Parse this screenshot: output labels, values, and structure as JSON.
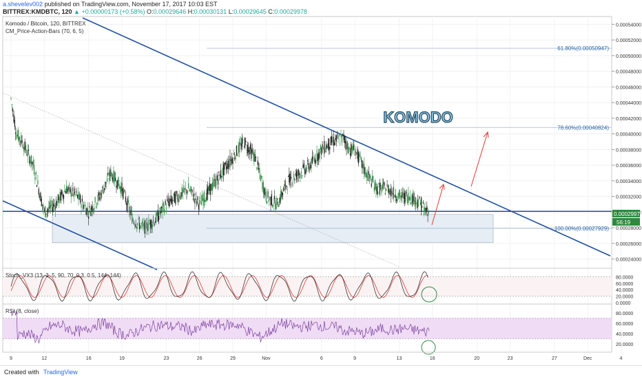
{
  "header": {
    "author": "a.shevelev002",
    "published": "published on TradingView.com, November 17, 2017 10:03 EST",
    "symbol": "BITTREX:KMDBTC, 120",
    "change": "▲ +0.00000173 (+0.58%)",
    "open_label": "O:",
    "open": "0.00029646",
    "high_label": "H:",
    "high": "0.00030131",
    "low_label": "L:",
    "low": "0.00029645",
    "close_label": "C:",
    "close": "0.00029978"
  },
  "legend": {
    "line1": "Komodo / Bitcoin, 120, BITTREX",
    "line2": "CM_Price-Action-Bars (70, 6, 5)"
  },
  "watermark": "KOMODO",
  "price_badge": "0.00029978",
  "countdown_badge": "56:19",
  "footer": {
    "created": "Created with",
    "brand": "TradingView"
  },
  "colors": {
    "trendline": "#1e4fa0",
    "fib": "#2a66a8",
    "bull": "#2b8a3e",
    "bear": "#1a1a1a",
    "arrow": "#e53935",
    "zone": "#dfe7f1",
    "stoch_k": "#1a1a1a",
    "stoch_d": "#e53935",
    "rsi": "#7b3fa0",
    "rsi_band": "#f0dcf5"
  },
  "chart_data": {
    "type": "candlestick",
    "symbol": "BITTREX:KMDBTC",
    "interval": "120",
    "y_axis": {
      "min": 0.00023,
      "max": 0.00055,
      "tick_labels": [
        "0.00054000",
        "0.00052000",
        "0.00050000",
        "0.00048000",
        "0.00046000",
        "0.00044000",
        "0.00042000",
        "0.00040000",
        "0.00038000",
        "0.00036000",
        "0.00034000",
        "0.00032000",
        "0.00030000",
        "0.00028000",
        "0.00026000",
        "0.00024000"
      ]
    },
    "x_axis_labels": [
      "9",
      "12",
      "16",
      "19",
      "23",
      "26",
      "29",
      "Nov",
      "6",
      "9",
      "13",
      "16",
      "20",
      "23",
      "27",
      "Dec",
      "4"
    ],
    "x_axis_index": [
      0,
      3,
      7,
      10,
      14,
      17,
      20,
      23,
      28,
      31,
      35,
      38,
      42,
      45,
      49,
      52,
      55
    ],
    "price_path": [
      [
        0,
        0.000445
      ],
      [
        0.5,
        0.0004
      ],
      [
        1,
        0.00039
      ],
      [
        2,
        0.00036
      ],
      [
        3,
        0.0003
      ],
      [
        4,
        0.00031
      ],
      [
        5,
        0.00033
      ],
      [
        6,
        0.00032
      ],
      [
        7,
        0.0003
      ],
      [
        8,
        0.00032
      ],
      [
        9,
        0.00035
      ],
      [
        10,
        0.00033
      ],
      [
        11,
        0.00029
      ],
      [
        12,
        0.00028
      ],
      [
        13,
        0.00029
      ],
      [
        14,
        0.00031
      ],
      [
        15,
        0.00032
      ],
      [
        16,
        0.00033
      ],
      [
        17,
        0.00031
      ],
      [
        18,
        0.00033
      ],
      [
        19,
        0.00035
      ],
      [
        20,
        0.00037
      ],
      [
        21,
        0.00039
      ],
      [
        22,
        0.00037
      ],
      [
        23,
        0.00032
      ],
      [
        24,
        0.00031
      ],
      [
        25,
        0.00034
      ],
      [
        26,
        0.00035
      ],
      [
        27,
        0.00036
      ],
      [
        28,
        0.00038
      ],
      [
        29,
        0.00039
      ],
      [
        30,
        0.000395
      ],
      [
        30.5,
        0.00038
      ],
      [
        31,
        0.00038
      ],
      [
        32,
        0.00035
      ],
      [
        33,
        0.00033
      ],
      [
        34,
        0.00033
      ],
      [
        35,
        0.00032
      ],
      [
        36,
        0.00032
      ],
      [
        37,
        0.00031
      ],
      [
        37.7,
        0.000295
      ]
    ],
    "fib_levels": [
      {
        "label": "61.80%(0.00050947)",
        "value": 0.00050947
      },
      {
        "label": "78.60%(0.00040824)",
        "value": 0.00040824
      },
      {
        "label": "100.00%(0.00027929)",
        "value": 0.00027929
      }
    ],
    "horizontal_line": 0.000301,
    "support_zone": [
      0.000261,
      0.000297
    ],
    "indicators": [
      {
        "name": "Stoch_VX3 (13, 3, 5, 90, 70, 0.3, 0.5, 144, 144)",
        "tick_labels": [
          "80.0000",
          "60.0000",
          "40.0000",
          "20.0000",
          "0.0000"
        ],
        "range": [
          0,
          100
        ]
      },
      {
        "name": "RSI (8, close)",
        "tick_labels": [
          "80.0000",
          "60.0000",
          "40.0000",
          "20.0000"
        ],
        "range": [
          0,
          100
        ]
      }
    ]
  }
}
